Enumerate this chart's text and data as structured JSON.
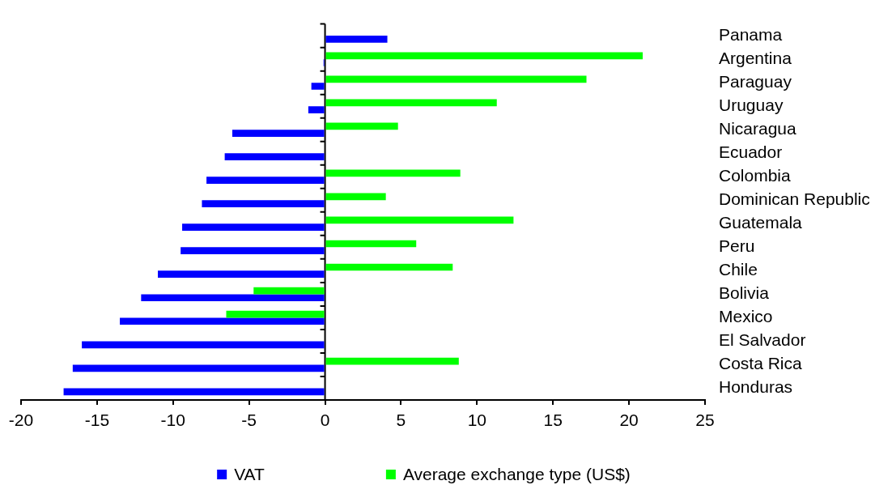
{
  "chart_data": {
    "type": "bar",
    "orientation": "horizontal",
    "categories": [
      "Panama",
      "Argentina",
      "Paraguay",
      "Uruguay",
      "Nicaragua",
      "Ecuador",
      "Colombia",
      "Dominican Republic",
      "Guatemala",
      "Peru",
      "Chile",
      "Bolivia",
      "Mexico",
      "El Salvador",
      "Costa Rica",
      "Honduras"
    ],
    "series": [
      {
        "name": "VAT",
        "color": "#0000ff",
        "values": [
          4.1,
          -0.1,
          -0.9,
          -1.1,
          -6.1,
          -6.6,
          -7.8,
          -8.1,
          -9.4,
          -9.5,
          -11.0,
          -12.1,
          -13.5,
          -16.0,
          -16.6,
          -17.2
        ]
      },
      {
        "name": "Average exchange type (US$)",
        "color": "#00ff00",
        "values": [
          null,
          20.9,
          17.2,
          11.3,
          4.8,
          null,
          8.9,
          4.0,
          12.4,
          6.0,
          8.4,
          -4.7,
          -6.5,
          null,
          8.8,
          null
        ]
      }
    ],
    "xlim": [
      -20,
      25
    ],
    "xticks": [
      -20,
      -15,
      -10,
      -5,
      0,
      5,
      10,
      15,
      20,
      25
    ],
    "legend": "bottom"
  }
}
